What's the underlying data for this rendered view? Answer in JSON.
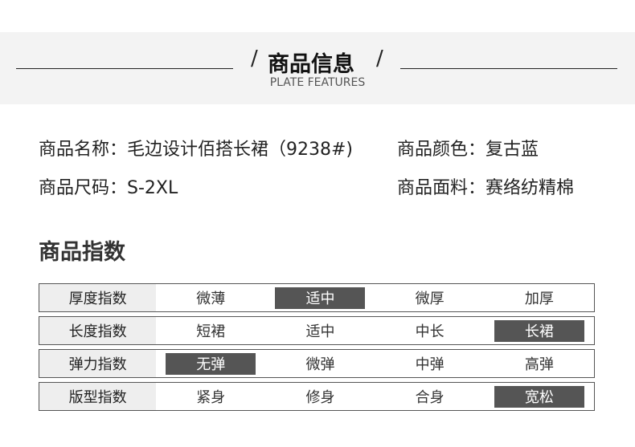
{
  "header": {
    "title": "商品信息",
    "subtitle": "PLATE FEATURES",
    "slash": "/"
  },
  "info": {
    "name": "商品名称：毛边设计佰搭长裙（9238#)",
    "color": "商品颜色：复古蓝",
    "size": "商品尺码：S-2XL",
    "fabric": "商品面料：赛络纺精棉"
  },
  "index_title": "商品指数",
  "rows": [
    {
      "label": "厚度指数",
      "options": [
        "微薄",
        "适中",
        "微厚",
        "加厚"
      ],
      "selected": 1
    },
    {
      "label": "长度指数",
      "options": [
        "短裙",
        "适中",
        "中长",
        "长裙"
      ],
      "selected": 3
    },
    {
      "label": "弹力指数",
      "options": [
        "无弹",
        "微弹",
        "中弹",
        "高弹"
      ],
      "selected": 0
    },
    {
      "label": "版型指数",
      "options": [
        "紧身",
        "修身",
        "合身",
        "宽松"
      ],
      "selected": 3
    }
  ],
  "colors": {
    "selected_bg": "#555555",
    "label_bg": "#eeeeee",
    "band_bg": "#f3f3f3"
  }
}
